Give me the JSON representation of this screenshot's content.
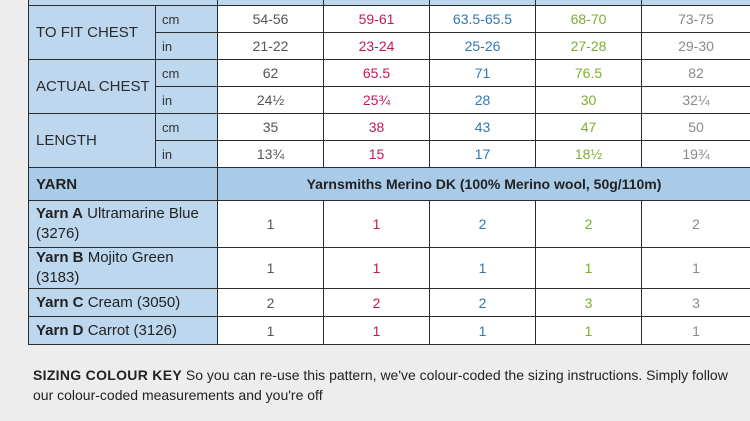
{
  "measurements": [
    {
      "label": "TO FIT CHEST",
      "rows": [
        {
          "unit": "cm",
          "values": [
            "54-56",
            "59-61",
            "63.5-65.5",
            "68-70",
            "73-75"
          ]
        },
        {
          "unit": "in",
          "values": [
            "21-22",
            "23-24",
            "25-26",
            "27-28",
            "29-30"
          ]
        }
      ]
    },
    {
      "label": "ACTUAL CHEST",
      "rows": [
        {
          "unit": "cm",
          "values": [
            "62",
            "65.5",
            "71",
            "76.5",
            "82"
          ]
        },
        {
          "unit": "in",
          "values": [
            "24½",
            "25¾",
            "28",
            "30",
            "32¼"
          ]
        }
      ]
    },
    {
      "label": "LENGTH",
      "rows": [
        {
          "unit": "cm",
          "values": [
            "35",
            "38",
            "43",
            "47",
            "50"
          ]
        },
        {
          "unit": "in",
          "values": [
            "13¾",
            "15",
            "17",
            "18½",
            "19¾"
          ]
        }
      ]
    }
  ],
  "yarn": {
    "header": "YARN",
    "description": "Yarnsmiths Merino DK (100% Merino wool, 50g/110m)",
    "items": [
      {
        "code": "Yarn A",
        "name": "Ultramarine Blue (3276)",
        "values": [
          "1",
          "1",
          "2",
          "2",
          "2"
        ]
      },
      {
        "code": "Yarn B",
        "name": "Mojito Green (3183)",
        "values": [
          "1",
          "1",
          "1",
          "1",
          "1"
        ]
      },
      {
        "code": "Yarn C",
        "name": "Cream (3050)",
        "values": [
          "2",
          "2",
          "2",
          "3",
          "3"
        ]
      },
      {
        "code": "Yarn D",
        "name": "Carrot (3126)",
        "values": [
          "1",
          "1",
          "1",
          "1",
          "1"
        ]
      }
    ]
  },
  "key": {
    "title": "SIZING COLOUR KEY",
    "text": "So you can re-use this pattern, we've colour-coded the sizing instructions. Simply follow our colour-coded measurements and you're off"
  },
  "size_colors": [
    "#555555",
    "#c2185b",
    "#2f77b6",
    "#7cae2e",
    "#8a8a8a"
  ],
  "colors": {
    "header_blue": "#bcd7ee",
    "yarn_header_blue": "#a9cbe8",
    "background": "#ededed"
  }
}
